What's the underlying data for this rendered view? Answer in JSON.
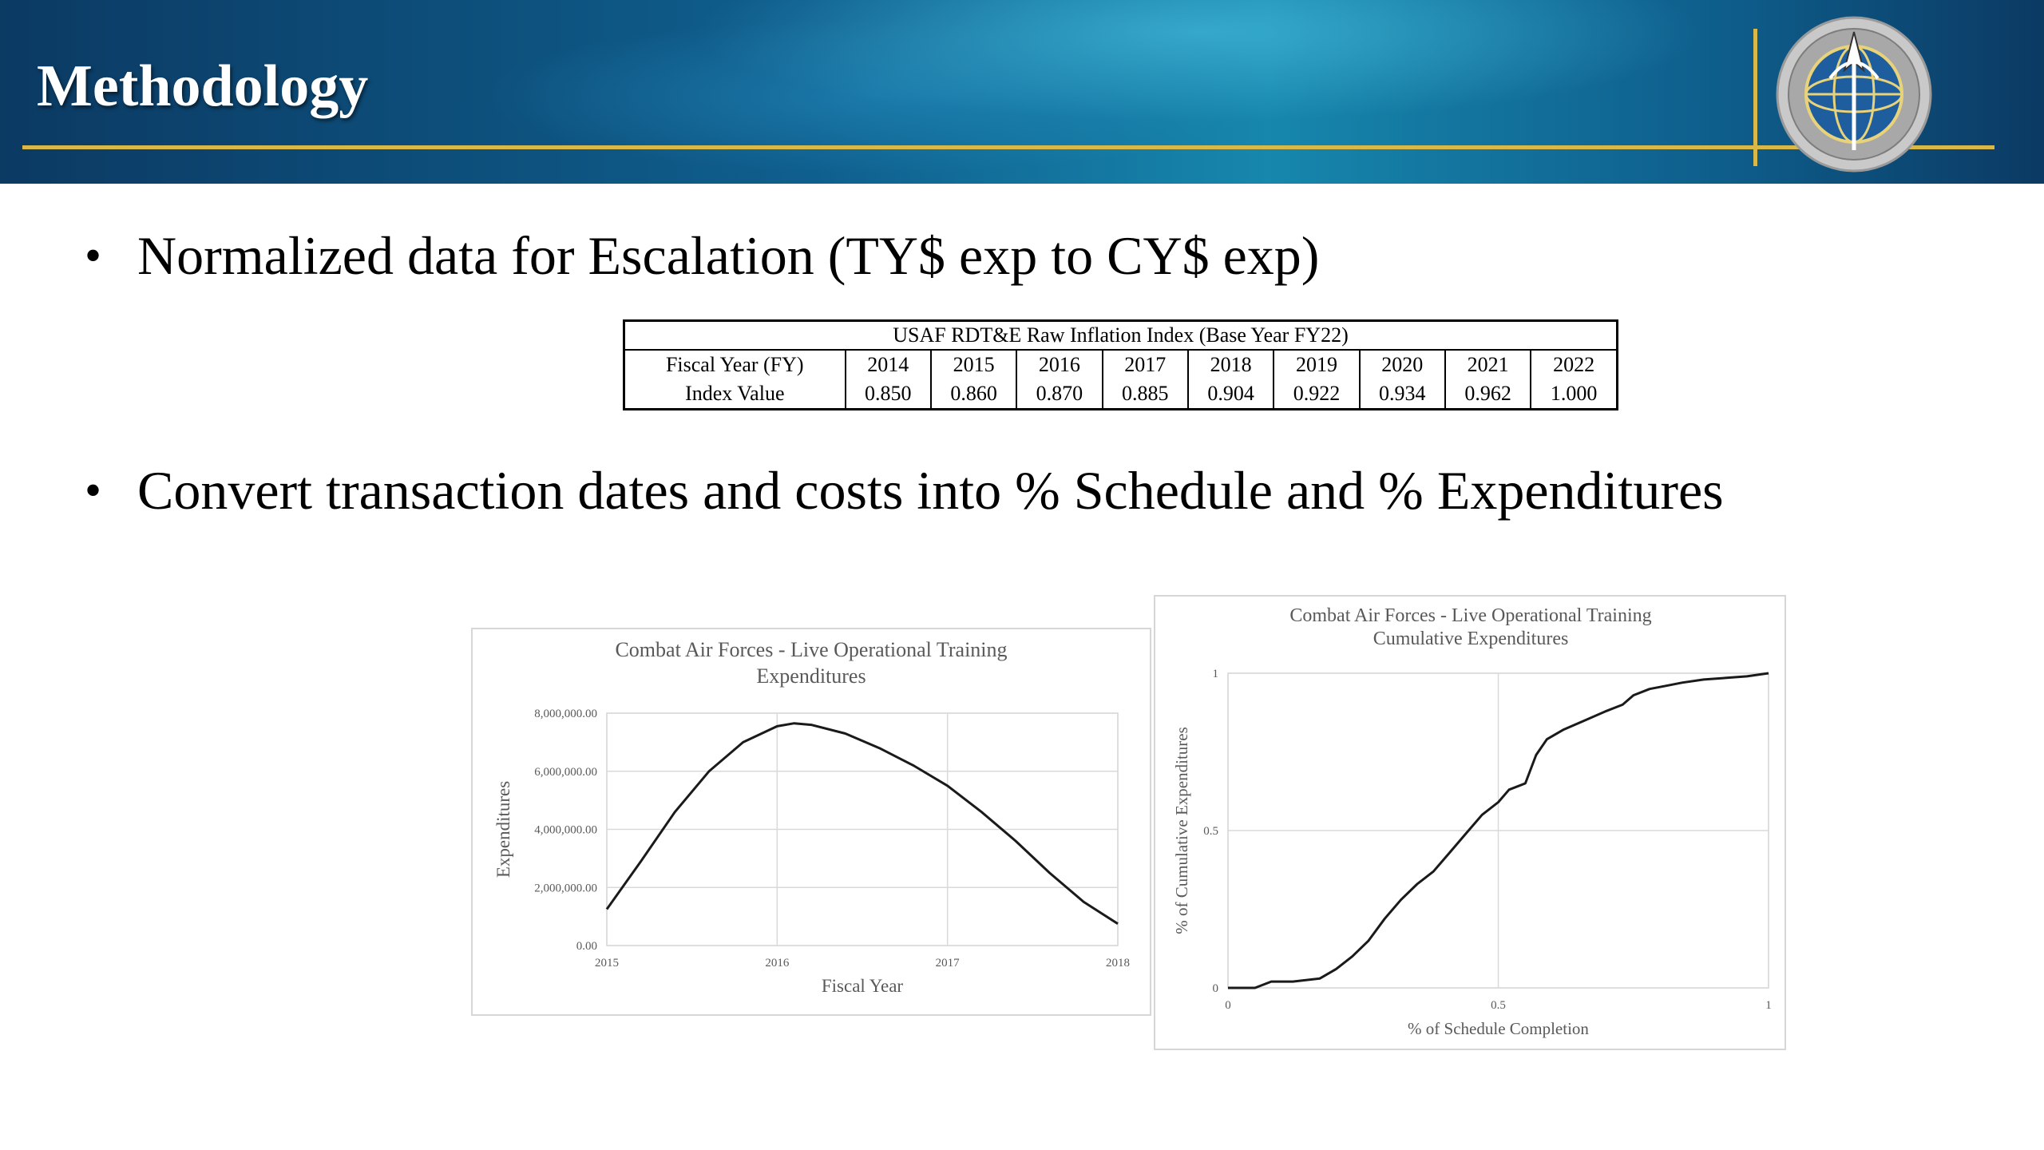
{
  "header": {
    "title": "Methodology"
  },
  "bullets": [
    "Normalized data for Escalation (TY$ exp to CY$ exp)",
    "Convert transaction dates and costs into % Schedule and % Expenditures"
  ],
  "inflation_table": {
    "caption": "USAF RDT&E Raw Inflation Index (Base Year FY22)",
    "row_labels": [
      "Fiscal Year (FY)",
      "Index Value"
    ],
    "years": [
      "2014",
      "2015",
      "2016",
      "2017",
      "2018",
      "2019",
      "2020",
      "2021",
      "2022"
    ],
    "values": [
      "0.850",
      "0.860",
      "0.870",
      "0.885",
      "0.904",
      "0.922",
      "0.934",
      "0.962",
      "1.000"
    ]
  },
  "colors": {
    "header_gold": "#d9b84a",
    "header_blue": "#0f5f8e",
    "line": "#1a1a1a",
    "grid": "#d9d9d9",
    "title_text": "#595959"
  },
  "chart_data": [
    {
      "type": "line",
      "title": [
        "Combat Air Forces - Live Operational Training",
        "Expenditures"
      ],
      "xlabel": "Fiscal Year",
      "ylabel": "Expenditures",
      "xticks": [
        "2015",
        "2016",
        "2017",
        "2018"
      ],
      "yticks": [
        "0.00",
        "2,000,000.00",
        "4,000,000.00",
        "6,000,000.00",
        "8,000,000.00"
      ],
      "xlim": [
        2015,
        2018
      ],
      "ylim": [
        0,
        8000000
      ],
      "grid": true,
      "series": [
        {
          "x": [
            2015.0,
            2015.2,
            2015.4,
            2015.6,
            2015.8,
            2016.0,
            2016.1,
            2016.2,
            2016.4,
            2016.6,
            2016.8,
            2017.0,
            2017.2,
            2017.4,
            2017.6,
            2017.8,
            2018.0
          ],
          "y": [
            1250000,
            2900000,
            4600000,
            6000000,
            7000000,
            7550000,
            7650000,
            7600000,
            7300000,
            6800000,
            6200000,
            5500000,
            4600000,
            3600000,
            2500000,
            1500000,
            750000
          ]
        }
      ]
    },
    {
      "type": "line",
      "title": [
        "Combat Air Forces - Live Operational Training",
        "Cumulative Expenditures"
      ],
      "xlabel": "% of Schedule Completion",
      "ylabel": "% of Cumulative Expenditures",
      "xticks": [
        "0",
        "0.5",
        "1"
      ],
      "yticks": [
        "0",
        "0.5",
        "1"
      ],
      "xlim": [
        0,
        1
      ],
      "ylim": [
        0,
        1
      ],
      "grid": true,
      "series": [
        {
          "x": [
            0,
            0.05,
            0.08,
            0.12,
            0.17,
            0.2,
            0.23,
            0.26,
            0.29,
            0.32,
            0.35,
            0.38,
            0.41,
            0.44,
            0.47,
            0.5,
            0.52,
            0.55,
            0.57,
            0.59,
            0.62,
            0.66,
            0.7,
            0.73,
            0.75,
            0.78,
            0.81,
            0.84,
            0.88,
            0.92,
            0.96,
            1.0
          ],
          "y": [
            0,
            0,
            0.02,
            0.02,
            0.03,
            0.06,
            0.1,
            0.15,
            0.22,
            0.28,
            0.33,
            0.37,
            0.43,
            0.49,
            0.55,
            0.59,
            0.63,
            0.65,
            0.74,
            0.79,
            0.82,
            0.85,
            0.88,
            0.9,
            0.93,
            0.95,
            0.96,
            0.97,
            0.98,
            0.985,
            0.99,
            1.0
          ]
        }
      ]
    }
  ]
}
